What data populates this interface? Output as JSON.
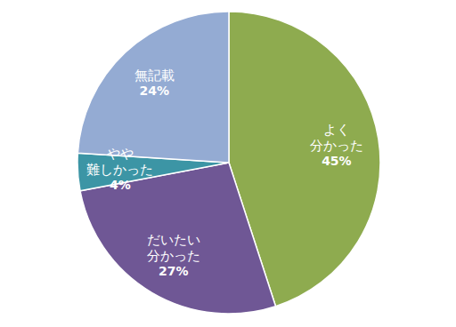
{
  "chart_data": {
    "type": "pie",
    "categories": [
      "よく\n分かった",
      "だいたい\n分かった",
      "やや\n難しかった",
      "無記載"
    ],
    "values": [
      45,
      27,
      4,
      24
    ],
    "value_labels": [
      "45%",
      "27%",
      "4%",
      "24%"
    ],
    "colors": [
      "#8eab4f",
      "#6f5795",
      "#3c95a5",
      "#94abd3"
    ],
    "data_labels": true
  }
}
